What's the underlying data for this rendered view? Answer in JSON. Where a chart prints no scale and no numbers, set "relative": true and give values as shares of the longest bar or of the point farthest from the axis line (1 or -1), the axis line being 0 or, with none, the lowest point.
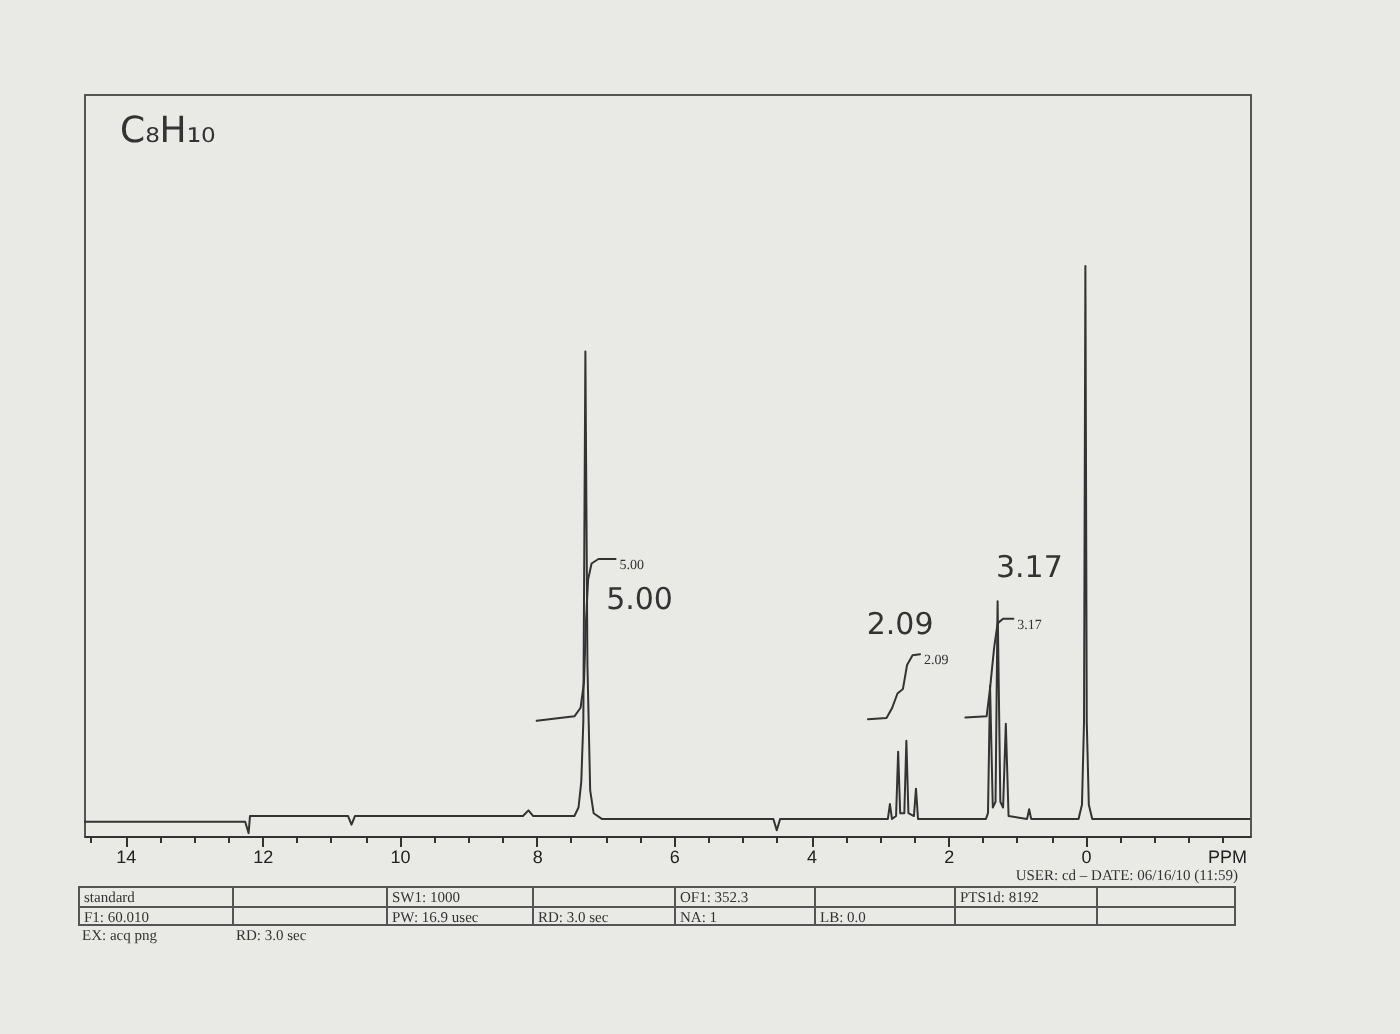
{
  "chart_data": {
    "type": "line",
    "title": "C₈H₁₀",
    "xlabel": "PPM",
    "relative": true,
    "xlim": [
      14.6,
      -2.4
    ],
    "xticks": [
      {
        "value": 14.5,
        "label": null
      },
      14,
      {
        "value": 13.5,
        "label": null
      },
      {
        "value": 13,
        "label": null
      },
      {
        "value": 12.5,
        "label": null
      },
      12,
      {
        "value": 11.5,
        "label": null
      },
      {
        "value": 11,
        "label": null
      },
      {
        "value": 10.5,
        "label": null
      },
      10,
      {
        "value": 9.5,
        "label": null
      },
      {
        "value": 9,
        "label": null
      },
      {
        "value": 8.5,
        "label": null
      },
      8,
      {
        "value": 7.5,
        "label": null
      },
      {
        "value": 7,
        "label": null
      },
      {
        "value": 6.5,
        "label": null
      },
      6,
      {
        "value": 5.5,
        "label": null
      },
      {
        "value": 5,
        "label": null
      },
      {
        "value": 4.5,
        "label": null
      },
      4,
      {
        "value": 3.5,
        "label": null
      },
      {
        "value": 3,
        "label": null
      },
      {
        "value": 2.5,
        "label": null
      },
      2,
      {
        "value": 1.5,
        "label": null
      },
      {
        "value": 1,
        "label": null
      },
      {
        "value": 0.5,
        "label": null
      },
      0,
      {
        "value": -0.5,
        "label": null
      },
      {
        "value": -1,
        "label": null
      },
      {
        "value": -1.5,
        "label": null
      },
      {
        "value": -2,
        "label": null
      }
    ],
    "series": [
      {
        "color": "#333333",
        "x": [
          14.6,
          12.25,
          12.2,
          12.18,
          10.75,
          10.7,
          10.65,
          8.2,
          8.12,
          8.05,
          7.45,
          7.39,
          7.35,
          7.32,
          7.29,
          7.26,
          7.22,
          7.17,
          7.05,
          4.55,
          4.5,
          4.45,
          2.95,
          2.88,
          2.85,
          2.82,
          2.76,
          2.73,
          2.7,
          2.64,
          2.61,
          2.58,
          2.5,
          2.47,
          2.44,
          1.45,
          1.42,
          1.39,
          1.35,
          1.31,
          1.28,
          1.24,
          1.2,
          1.16,
          1.12,
          0.85,
          0.82,
          0.79,
          0.1,
          0.05,
          0.02,
          0,
          -0.02,
          -0.05,
          -0.1,
          -2.4
        ],
        "values": [
          0.025,
          0.025,
          0.005,
          0.035,
          0.035,
          0.02,
          0.035,
          0.035,
          0.045,
          0.035,
          0.035,
          0.05,
          0.095,
          0.2,
          0.85,
          0.3,
          0.08,
          0.04,
          0.03,
          0.03,
          0.01,
          0.03,
          0.03,
          0.03,
          0.056,
          0.03,
          0.035,
          0.148,
          0.04,
          0.04,
          0.167,
          0.04,
          0.035,
          0.083,
          0.03,
          0.03,
          0.04,
          0.263,
          0.05,
          0.06,
          0.412,
          0.06,
          0.05,
          0.197,
          0.035,
          0.03,
          0.047,
          0.03,
          0.03,
          0.055,
          0.2,
          1,
          0.2,
          0.055,
          0.03,
          0.03
        ]
      },
      {
        "color": "#333333",
        "x": [
          8.0,
          7.45,
          7.36,
          7.31,
          7.28,
          7.25,
          7.2,
          7.1,
          6.85
        ],
        "values": [
          0.202,
          0.21,
          0.225,
          0.27,
          0.38,
          0.45,
          0.478,
          0.486,
          0.486
        ]
      },
      {
        "color": "#333333",
        "x": [
          3.17,
          2.9,
          2.82,
          2.74,
          2.66,
          2.6,
          2.52,
          2.41
        ],
        "values": [
          0.205,
          0.207,
          0.224,
          0.25,
          0.258,
          0.3,
          0.317,
          0.319
        ]
      },
      {
        "color": "#333333",
        "x": [
          1.75,
          1.44,
          1.39,
          1.33,
          1.28,
          1.2,
          1.05
        ],
        "values": [
          0.208,
          0.21,
          0.259,
          0.331,
          0.373,
          0.381,
          0.381
        ]
      }
    ],
    "annotations": [
      {
        "text": "5.00",
        "x": 6.85,
        "y": 0.486
      },
      {
        "text": "5.00",
        "x": 6.85,
        "y": 0.486
      },
      {
        "text": "2.09",
        "x": 2.41,
        "y": 0.319
      },
      {
        "text": "2.09",
        "x": 2.41,
        "y": 0.319
      },
      {
        "text": "3.17",
        "x": 1.05,
        "y": 0.381
      },
      {
        "text": "3.17",
        "x": 1.05,
        "y": 0.381
      },
      "standard",
      "F1: 60.010",
      "EX: acq png",
      "RD: 3.0 sec",
      "SW1: 1000",
      "PW: 16.9 usec",
      "RD: 3.0 sec",
      "OF1: 352.3",
      "NA: 1",
      "LB: 0.0",
      "PTS1d: 8192",
      "USER: cd – DATE: 06/16/10 (11:59)"
    ]
  }
}
